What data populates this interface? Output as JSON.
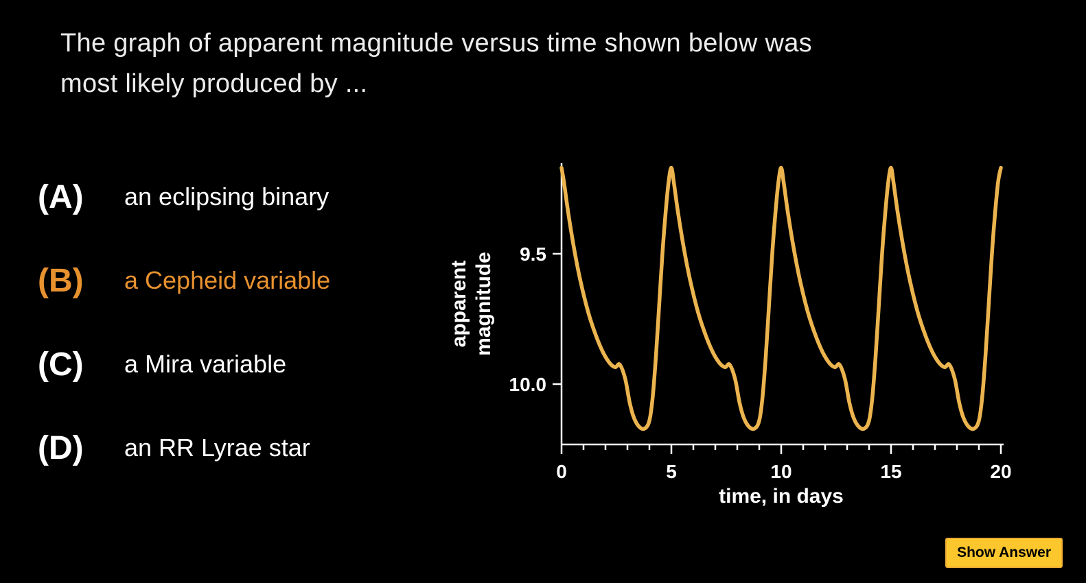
{
  "question": {
    "lines": [
      "The graph of apparent magnitude versus time shown below was",
      "most likely produced by ..."
    ]
  },
  "options": [
    {
      "letter": "(A)",
      "label": "an eclipsing binary",
      "highlighted": false
    },
    {
      "letter": "(B)",
      "label": "a Cepheid variable",
      "highlighted": true
    },
    {
      "letter": "(C)",
      "label": "a Mira variable",
      "highlighted": false
    },
    {
      "letter": "(D)",
      "label": "an RR Lyrae star",
      "highlighted": false
    }
  ],
  "show_answer_button": {
    "label": "Show Answer"
  },
  "colors": {
    "background": "#000000",
    "question_text": "#ececec",
    "option_text": "#ffffff",
    "highlight_orange": "#e8922f",
    "curve": "#ecb44e",
    "axis": "#ffffff",
    "button_background": "#fcc72d",
    "button_border": "#efae33",
    "button_text": "#000000"
  },
  "chart_data": {
    "type": "line",
    "title": "",
    "xlabel": "time, in days",
    "ylabel": "apparent magnitude",
    "ylabel_lines": [
      "apparent",
      "magnitude"
    ],
    "x_ticks": [
      0,
      5,
      10,
      15,
      20
    ],
    "x_minor_tick_step_days": 1,
    "y_ticks": [
      9.5,
      10.0
    ],
    "y_tick_labels": [
      "9.5",
      "10.0"
    ],
    "xlim_days": [
      0,
      20
    ],
    "ylim_magnitude": [
      10.23,
      9.15
    ],
    "y_axis_inverted": true,
    "grid": false,
    "legend": false,
    "period_days": 5,
    "num_periods": 4,
    "series": [
      {
        "name": "Cepheid variable light curve",
        "color": "#ecb44e",
        "period_points_day_mag": [
          [
            0.0,
            9.17
          ],
          [
            0.12,
            9.23
          ],
          [
            0.3,
            9.34
          ],
          [
            0.55,
            9.47
          ],
          [
            0.85,
            9.6
          ],
          [
            1.2,
            9.72
          ],
          [
            1.55,
            9.81
          ],
          [
            1.9,
            9.88
          ],
          [
            2.2,
            9.92
          ],
          [
            2.45,
            9.935
          ],
          [
            2.65,
            9.925
          ],
          [
            2.9,
            9.98
          ],
          [
            3.1,
            10.07
          ],
          [
            3.3,
            10.13
          ],
          [
            3.55,
            10.165
          ],
          [
            3.8,
            10.17
          ],
          [
            4.0,
            10.14
          ],
          [
            4.15,
            10.05
          ],
          [
            4.3,
            9.89
          ],
          [
            4.45,
            9.69
          ],
          [
            4.6,
            9.49
          ],
          [
            4.75,
            9.33
          ],
          [
            4.88,
            9.22
          ],
          [
            5.0,
            9.17
          ]
        ]
      }
    ]
  }
}
